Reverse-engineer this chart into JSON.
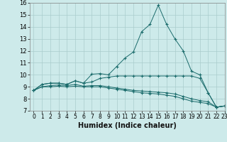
{
  "title": "",
  "xlabel": "Humidex (Indice chaleur)",
  "bg_color": "#cdeaea",
  "grid_color": "#aacccc",
  "line_color": "#1a6b6b",
  "marker": "+",
  "xlim": [
    -0.5,
    23
  ],
  "ylim": [
    7,
    16
  ],
  "xticks": [
    0,
    1,
    2,
    3,
    4,
    5,
    6,
    7,
    8,
    9,
    10,
    11,
    12,
    13,
    14,
    15,
    16,
    17,
    18,
    19,
    20,
    21,
    22,
    23
  ],
  "yticks": [
    7,
    8,
    9,
    10,
    11,
    12,
    13,
    14,
    15,
    16
  ],
  "series": [
    [
      8.7,
      9.2,
      9.3,
      9.3,
      9.2,
      9.5,
      9.3,
      10.05,
      10.1,
      10.0,
      10.7,
      11.4,
      11.9,
      13.6,
      14.2,
      15.8,
      14.2,
      13.0,
      12.0,
      10.3,
      10.0,
      8.5,
      7.3,
      7.4
    ],
    [
      8.7,
      9.2,
      9.3,
      9.3,
      9.2,
      9.5,
      9.3,
      9.4,
      9.7,
      9.8,
      9.9,
      9.9,
      9.9,
      9.9,
      9.9,
      9.9,
      9.9,
      9.9,
      9.9,
      9.9,
      9.7,
      8.5,
      7.3,
      7.4
    ],
    [
      8.7,
      9.0,
      9.1,
      9.15,
      9.1,
      9.2,
      9.05,
      9.1,
      9.1,
      9.0,
      8.9,
      8.8,
      8.7,
      8.65,
      8.6,
      8.55,
      8.5,
      8.4,
      8.2,
      8.0,
      7.85,
      7.75,
      7.3,
      7.4
    ],
    [
      8.7,
      9.0,
      9.0,
      9.05,
      9.0,
      9.05,
      9.0,
      9.0,
      9.0,
      8.9,
      8.8,
      8.7,
      8.6,
      8.5,
      8.45,
      8.4,
      8.3,
      8.2,
      8.0,
      7.8,
      7.7,
      7.6,
      7.3,
      7.4
    ]
  ]
}
